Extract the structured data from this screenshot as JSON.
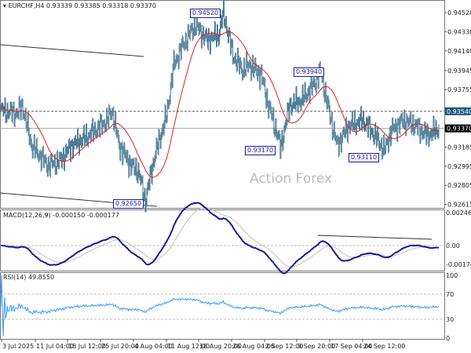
{
  "header": {
    "symbol": "EURCHF,H4",
    "ohlc": "0.93339 0.93385 0.93318 0.93370"
  },
  "watermark": "Action Forex",
  "annotations": [
    "0.94520",
    "0.93940",
    "0.93170",
    "0.93110",
    "0.92650"
  ],
  "colors": {
    "candle": "#4a7a95",
    "ma": "#e02020",
    "macd": "#1a1a9a",
    "signal": "#c0c0c0",
    "rsi": "#3399ff",
    "current_price_bg": "#000000",
    "level_bg": "#1e5a78"
  },
  "chart_data": [
    {
      "type": "candlestick",
      "title": "EURCHF,H4",
      "ylim": [
        0.92615,
        0.9452
      ],
      "y_ticks": [
        "0.94520",
        "0.94330",
        "0.94140",
        "0.93945",
        "0.93755",
        "0.93185",
        "0.92995",
        "0.92805",
        "0.92615"
      ],
      "current_price": "0.93370",
      "level": "0.93540",
      "x_ticks": [
        "3 Jul 2025",
        "11 Jul 04:00",
        "18 Jul 12:00",
        "25 Jul 20:00",
        "4 Aug 04:00",
        "11 Aug 12:00",
        "18 Aug 20:00",
        "26 Aug 04:00",
        "2 Sep 12:00",
        "9 Sep 20:00",
        "17 Sep 04:00",
        "24 Sep 12:00"
      ],
      "swing_closes": [
        [
          0,
          0.9355
        ],
        [
          7,
          0.9352
        ],
        [
          9,
          0.936
        ],
        [
          13,
          0.932
        ],
        [
          20,
          0.93
        ],
        [
          25,
          0.9305
        ],
        [
          30,
          0.932
        ],
        [
          37,
          0.933
        ],
        [
          45,
          0.9345
        ],
        [
          47,
          0.9355
        ],
        [
          50,
          0.932
        ],
        [
          55,
          0.93
        ],
        [
          58,
          0.9295
        ],
        [
          61,
          0.9265
        ],
        [
          65,
          0.931
        ],
        [
          70,
          0.935
        ],
        [
          73,
          0.94
        ],
        [
          77,
          0.942
        ],
        [
          82,
          0.944
        ],
        [
          87,
          0.9425
        ],
        [
          92,
          0.943
        ],
        [
          94,
          0.9452
        ],
        [
          98,
          0.941
        ],
        [
          102,
          0.9395
        ],
        [
          105,
          0.94
        ],
        [
          110,
          0.939
        ],
        [
          113,
          0.936
        ],
        [
          117,
          0.933
        ],
        [
          118,
          0.9317
        ],
        [
          122,
          0.936
        ],
        [
          127,
          0.9365
        ],
        [
          132,
          0.938
        ],
        [
          135,
          0.9394
        ],
        [
          138,
          0.936
        ],
        [
          142,
          0.932
        ],
        [
          147,
          0.934
        ],
        [
          153,
          0.9345
        ],
        [
          158,
          0.933
        ],
        [
          162,
          0.9315
        ],
        [
          165,
          0.9335
        ],
        [
          170,
          0.9345
        ],
        [
          175,
          0.934
        ],
        [
          180,
          0.933
        ],
        [
          185,
          0.9337
        ]
      ],
      "ma_color": "#e02020"
    },
    {
      "type": "line",
      "title": "MACD(12,26,9) -0.000150 -0.000177",
      "y_ticks": [
        "0.002463",
        "0.00",
        "-0.00174"
      ],
      "ylim": [
        -0.00174,
        0.002463
      ]
    },
    {
      "type": "line",
      "title": "RSI(14) 49.8550",
      "y_ticks": [
        "100",
        "70",
        "30",
        "0"
      ],
      "ylim": [
        0,
        100
      ],
      "levels": [
        70,
        30
      ]
    }
  ]
}
